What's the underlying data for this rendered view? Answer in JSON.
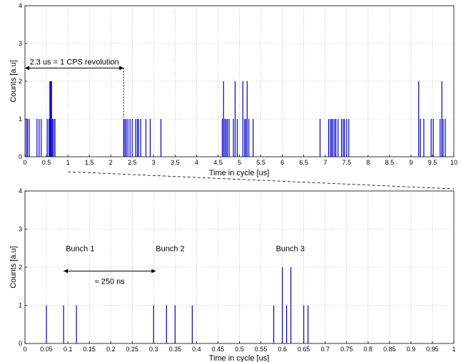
{
  "chart_data": [
    {
      "type": "bar",
      "xlabel": "Time in cycle [us]",
      "ylabel": "Counts [a.u]",
      "xlim": [
        0,
        10
      ],
      "ylim": [
        0,
        4
      ],
      "xticks": [
        "0",
        "0.5",
        "1",
        "1.5",
        "2",
        "2.5",
        "3",
        "3.5",
        "4",
        "4.5",
        "5",
        "5.5",
        "6",
        "6.5",
        "7",
        "7.5",
        "8",
        "8.5",
        "9",
        "9.5",
        "10"
      ],
      "yticks": [
        "0",
        "1",
        "2",
        "3",
        "4"
      ],
      "grid": true,
      "color": "#0000cc",
      "x": [
        0.03,
        0.06,
        0.1,
        0.28,
        0.33,
        0.38,
        0.52,
        0.56,
        0.58,
        0.6,
        0.62,
        0.64,
        0.67,
        0.7,
        2.3,
        2.33,
        2.36,
        2.4,
        2.45,
        2.5,
        2.58,
        2.62,
        2.65,
        2.7,
        2.82,
        2.92,
        3.17,
        4.6,
        4.63,
        4.66,
        4.69,
        4.72,
        4.76,
        4.86,
        4.9,
        4.95,
        5.08,
        5.12,
        5.15,
        5.18,
        5.22,
        5.32,
        6.88,
        7.08,
        7.12,
        7.15,
        7.18,
        7.22,
        7.25,
        7.3,
        7.38,
        7.42,
        7.45,
        7.5,
        7.55,
        9.18,
        9.22,
        9.3,
        9.47,
        9.52,
        9.68,
        9.72,
        9.75,
        9.8
      ],
      "values": [
        1,
        1,
        1,
        1,
        1,
        1,
        1,
        1,
        2,
        2,
        2,
        1,
        1,
        1,
        1,
        1,
        1,
        1,
        1,
        1,
        1,
        1,
        1,
        1,
        1,
        1,
        1,
        1,
        2,
        1,
        1,
        1,
        1,
        1,
        2,
        1,
        2,
        1,
        1,
        2,
        1,
        1,
        1,
        1,
        1,
        1,
        1,
        1,
        1,
        1,
        1,
        1,
        1,
        1,
        1,
        2,
        1,
        1,
        1,
        1,
        1,
        2,
        1,
        1
      ],
      "annotations": [
        {
          "text": "2.3 us = 1 CPS revolution",
          "x_from": 0.0,
          "x_to": 2.3,
          "y": 2.35
        }
      ]
    },
    {
      "type": "bar",
      "xlabel": "Time in cycle [us]",
      "ylabel": "Counts [a.u]",
      "xlim": [
        0,
        1
      ],
      "ylim": [
        0,
        4
      ],
      "xticks": [
        "0",
        "0.05",
        "0.1",
        "0.15",
        "0.2",
        "0.25",
        "0.3",
        "0.35",
        "0.4",
        "0.45",
        "0.5",
        "0.55",
        "0.6",
        "0.65",
        "0.7",
        "0.75",
        "0.8",
        "0.85",
        "0.9",
        "0.95",
        "1"
      ],
      "yticks": [
        "0",
        "1",
        "2",
        "3",
        "4"
      ],
      "grid": true,
      "color": "#0000cc",
      "x": [
        0.05,
        0.09,
        0.12,
        0.3,
        0.33,
        0.35,
        0.39,
        0.58,
        0.6,
        0.61,
        0.62,
        0.65,
        0.66
      ],
      "values": [
        1,
        1,
        1,
        1,
        1,
        1,
        1,
        1,
        2,
        1,
        2,
        1,
        1
      ],
      "annotations": [
        {
          "text": "Bunch 1",
          "x": 0.095,
          "y": 2.5
        },
        {
          "text": "Bunch 2",
          "x": 0.305,
          "y": 2.5
        },
        {
          "text": "Bunch 3",
          "x": 0.585,
          "y": 2.5
        },
        {
          "text": "≈ 250 ns",
          "x_from": 0.09,
          "x_to": 0.305,
          "y": 1.9
        }
      ]
    }
  ]
}
